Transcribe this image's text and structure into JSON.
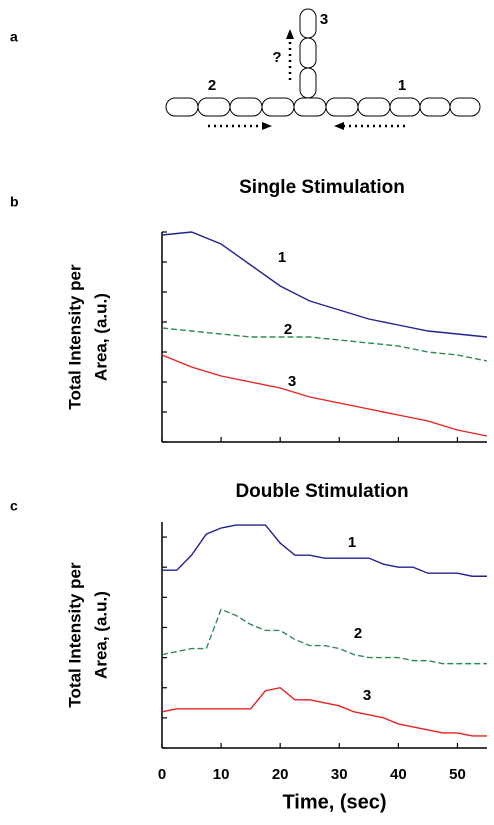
{
  "diagram": {
    "panel": "a",
    "labels": [
      "1",
      "2",
      "3",
      "?"
    ]
  },
  "chart_data": [
    {
      "type": "line",
      "panel": "b",
      "title": "Single Stimulation",
      "ylabel": [
        "Total Intensity per",
        "Area, (a.u.)"
      ],
      "x": [
        0,
        5,
        10,
        15,
        20,
        25,
        30,
        35,
        40,
        45,
        50,
        55
      ],
      "xlim": [
        0,
        55
      ],
      "xticks": [
        0,
        10,
        20,
        30,
        40,
        50
      ],
      "ylim": [
        0,
        7
      ],
      "yticks": [
        0,
        1,
        2,
        3,
        4,
        5,
        6,
        7
      ],
      "series": [
        {
          "name": "1",
          "color": "#23238f",
          "line_style": "solid",
          "values": [
            6.9,
            7.0,
            6.6,
            5.9,
            5.2,
            4.7,
            4.4,
            4.1,
            3.9,
            3.7,
            3.6,
            3.5
          ]
        },
        {
          "name": "2",
          "color": "#2e8b57",
          "line_style": "dashed",
          "values": [
            3.8,
            3.7,
            3.6,
            3.5,
            3.5,
            3.5,
            3.4,
            3.3,
            3.2,
            3.0,
            2.9,
            2.7
          ]
        },
        {
          "name": "3",
          "color": "#e52222",
          "line_style": "solid",
          "values": [
            2.9,
            2.5,
            2.2,
            2.0,
            1.8,
            1.5,
            1.3,
            1.1,
            0.9,
            0.7,
            0.4,
            0.2
          ]
        }
      ]
    },
    {
      "type": "line",
      "panel": "c",
      "title": "Double Stimulation",
      "ylabel": [
        "Total Intensity per",
        "Area, (a.u.)"
      ],
      "xlabel": "Time, (sec)",
      "x": [
        0,
        2.5,
        5,
        7.5,
        10,
        12.5,
        15,
        17.5,
        20,
        22.5,
        25,
        27.5,
        30,
        32.5,
        35,
        37.5,
        40,
        42.5,
        45,
        47.5,
        50,
        52.5,
        55
      ],
      "xlim": [
        0,
        55
      ],
      "xticks": [
        0,
        10,
        20,
        30,
        40,
        50
      ],
      "ylim": [
        0,
        7.5
      ],
      "yticks": [
        0,
        1,
        2,
        3,
        4,
        5,
        6,
        7
      ],
      "series": [
        {
          "name": "1",
          "color": "#23238f",
          "line_style": "solid",
          "values": [
            5.9,
            5.9,
            6.4,
            7.1,
            7.3,
            7.4,
            7.4,
            7.4,
            6.8,
            6.4,
            6.4,
            6.3,
            6.3,
            6.3,
            6.3,
            6.1,
            6.0,
            6.0,
            5.8,
            5.8,
            5.8,
            5.7,
            5.7
          ]
        },
        {
          "name": "2",
          "color": "#2e8b57",
          "line_style": "dashed",
          "values": [
            3.1,
            3.2,
            3.3,
            3.3,
            4.6,
            4.4,
            4.1,
            3.9,
            3.9,
            3.6,
            3.4,
            3.4,
            3.3,
            3.1,
            3.0,
            3.0,
            3.0,
            2.9,
            2.9,
            2.8,
            2.8,
            2.8,
            2.8
          ]
        },
        {
          "name": "3",
          "color": "#e52222",
          "line_style": "solid",
          "values": [
            1.2,
            1.3,
            1.3,
            1.3,
            1.3,
            1.3,
            1.3,
            1.9,
            2.0,
            1.6,
            1.6,
            1.5,
            1.4,
            1.2,
            1.1,
            1.0,
            0.8,
            0.7,
            0.6,
            0.5,
            0.5,
            0.4,
            0.4
          ]
        }
      ]
    }
  ]
}
